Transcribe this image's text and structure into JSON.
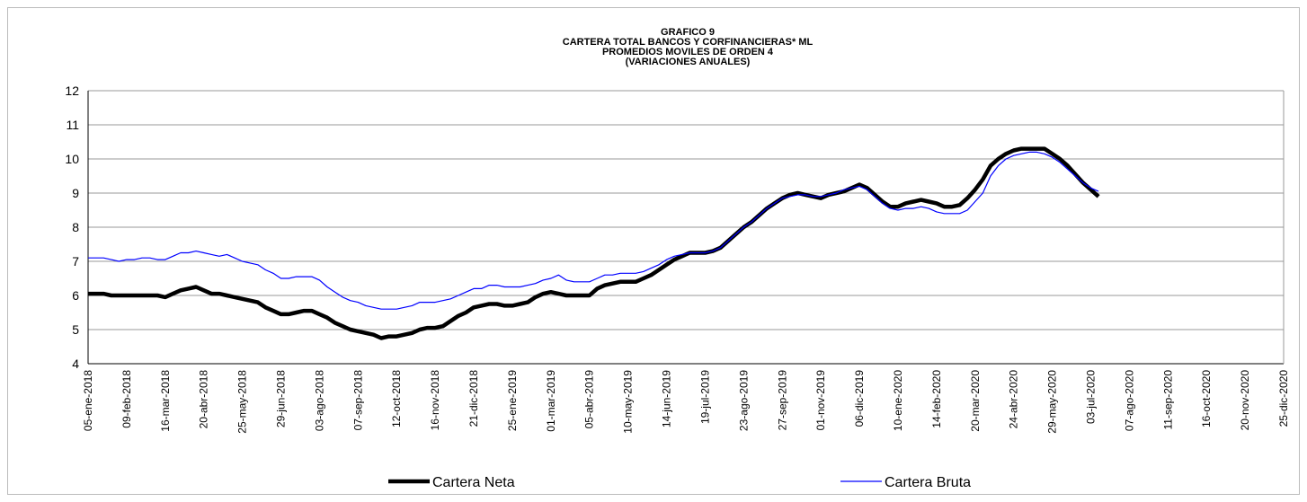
{
  "chart_data": {
    "type": "line",
    "title": [
      "GRAFICO  9",
      "CARTERA TOTAL BANCOS Y CORFINANCIERAS*  ML",
      "PROMEDIOS MOVILES DE ORDEN 4",
      "(VARIACIONES ANUALES)"
    ],
    "categories": [
      "05-ene-2018",
      null,
      null,
      null,
      null,
      "09-feb-2018",
      null,
      null,
      null,
      null,
      "16-mar-2018",
      null,
      null,
      null,
      null,
      "20-abr-2018",
      null,
      null,
      null,
      null,
      "25-may-2018",
      null,
      null,
      null,
      null,
      "29-jun-2018",
      null,
      null,
      null,
      null,
      "03-ago-2018",
      null,
      null,
      null,
      null,
      "07-sep-2018",
      null,
      null,
      null,
      null,
      "12-oct-2018",
      null,
      null,
      null,
      null,
      "16-nov-2018",
      null,
      null,
      null,
      null,
      "21-dic-2018",
      null,
      null,
      null,
      null,
      "25-ene-2019",
      null,
      null,
      null,
      null,
      "01-mar-2019",
      null,
      null,
      null,
      null,
      "05-abr-2019",
      null,
      null,
      null,
      null,
      "10-may-2019",
      null,
      null,
      null,
      null,
      "14-jun-2019",
      null,
      null,
      null,
      null,
      "19-jul-2019",
      null,
      null,
      null,
      null,
      "23-ago-2019",
      null,
      null,
      null,
      null,
      "27-sep-2019",
      null,
      null,
      null,
      null,
      "01-nov-2019",
      null,
      null,
      null,
      null,
      "06-dic-2019",
      null,
      null,
      null,
      null,
      "10-ene-2020",
      null,
      null,
      null,
      null,
      "14-feb-2020",
      null,
      null,
      null,
      null,
      "20-mar-2020",
      null,
      null,
      null,
      null,
      "24-abr-2020",
      null,
      null,
      null,
      null,
      "29-may-2020",
      null,
      null,
      null,
      null,
      "03-jul-2020",
      null,
      null,
      null,
      null,
      "07-ago-2020",
      null,
      null,
      null,
      null,
      "11-sep-2020",
      null,
      null,
      null,
      null,
      "16-oct-2020",
      null,
      null,
      null,
      null,
      "20-nov-2020",
      null,
      null,
      null,
      null,
      "25-dic-2020"
    ],
    "series": [
      {
        "name": "Cartera Neta",
        "color": "#000000",
        "values": [
          6.05,
          6.05,
          6.05,
          6.0,
          6.0,
          6.0,
          6.0,
          6.0,
          6.0,
          6.0,
          5.95,
          6.05,
          6.15,
          6.2,
          6.25,
          6.15,
          6.05,
          6.05,
          6.0,
          5.95,
          5.9,
          5.85,
          5.8,
          5.65,
          5.55,
          5.45,
          5.45,
          5.5,
          5.55,
          5.55,
          5.45,
          5.35,
          5.2,
          5.1,
          5.0,
          4.95,
          4.9,
          4.85,
          4.75,
          4.8,
          4.8,
          4.85,
          4.9,
          5.0,
          5.05,
          5.05,
          5.1,
          5.25,
          5.4,
          5.5,
          5.65,
          5.7,
          5.75,
          5.75,
          5.7,
          5.7,
          5.75,
          5.8,
          5.95,
          6.05,
          6.1,
          6.05,
          6.0,
          6.0,
          6.0,
          6.0,
          6.2,
          6.3,
          6.35,
          6.4,
          6.4,
          6.4,
          6.5,
          6.6,
          6.75,
          6.9,
          7.05,
          7.15,
          7.25,
          7.25,
          7.25,
          7.3,
          7.4,
          7.6,
          7.8,
          8.0,
          8.15,
          8.35,
          8.55,
          8.7,
          8.85,
          8.95,
          9.0,
          8.95,
          8.9,
          8.85,
          8.95,
          9.0,
          9.05,
          9.15,
          9.25,
          9.15,
          8.95,
          8.75,
          8.6,
          8.6,
          8.7,
          8.75,
          8.8,
          8.75,
          8.7,
          8.6,
          8.6,
          8.65,
          8.85,
          9.1,
          9.4,
          9.8,
          10.0,
          10.15,
          10.25,
          10.3,
          10.3,
          10.3,
          10.3,
          10.15,
          10.0,
          9.8,
          9.55,
          9.3,
          9.1,
          8.9,
          null,
          null,
          null,
          null,
          null,
          null,
          null,
          null,
          null,
          null,
          null,
          null,
          null,
          null,
          null,
          null,
          null,
          null,
          null,
          null,
          null,
          null,
          null,
          null
        ]
      },
      {
        "name": "Cartera Bruta",
        "color": "#0000ff",
        "values": [
          7.1,
          7.1,
          7.1,
          7.05,
          7.0,
          7.05,
          7.05,
          7.1,
          7.1,
          7.05,
          7.05,
          7.15,
          7.25,
          7.25,
          7.3,
          7.25,
          7.2,
          7.15,
          7.2,
          7.1,
          7.0,
          6.95,
          6.9,
          6.75,
          6.65,
          6.5,
          6.5,
          6.55,
          6.55,
          6.55,
          6.45,
          6.25,
          6.1,
          5.95,
          5.85,
          5.8,
          5.7,
          5.65,
          5.6,
          5.6,
          5.6,
          5.65,
          5.7,
          5.8,
          5.8,
          5.8,
          5.85,
          5.9,
          6.0,
          6.1,
          6.2,
          6.2,
          6.3,
          6.3,
          6.25,
          6.25,
          6.25,
          6.3,
          6.35,
          6.45,
          6.5,
          6.6,
          6.45,
          6.4,
          6.4,
          6.4,
          6.5,
          6.6,
          6.6,
          6.65,
          6.65,
          6.65,
          6.7,
          6.8,
          6.9,
          7.05,
          7.15,
          7.2,
          7.25,
          7.25,
          7.25,
          7.3,
          7.4,
          7.6,
          7.8,
          8.0,
          8.15,
          8.35,
          8.55,
          8.7,
          8.85,
          8.9,
          8.95,
          8.95,
          8.9,
          8.9,
          8.95,
          9.0,
          9.1,
          9.15,
          9.2,
          9.1,
          8.9,
          8.7,
          8.55,
          8.5,
          8.55,
          8.55,
          8.6,
          8.55,
          8.45,
          8.4,
          8.4,
          8.4,
          8.5,
          8.75,
          9.0,
          9.5,
          9.8,
          10.0,
          10.1,
          10.15,
          10.2,
          10.2,
          10.15,
          10.05,
          9.9,
          9.7,
          9.5,
          9.3,
          9.15,
          9.05,
          null,
          null,
          null,
          null,
          null,
          null,
          null,
          null,
          null,
          null,
          null,
          null,
          null,
          null,
          null,
          null,
          null,
          null,
          null,
          null,
          null,
          null,
          null,
          null
        ]
      }
    ],
    "ylim": [
      4,
      12
    ],
    "yticks": [
      4,
      5,
      6,
      7,
      8,
      9,
      10,
      11,
      12
    ],
    "grid": true,
    "legend": "bottom"
  }
}
